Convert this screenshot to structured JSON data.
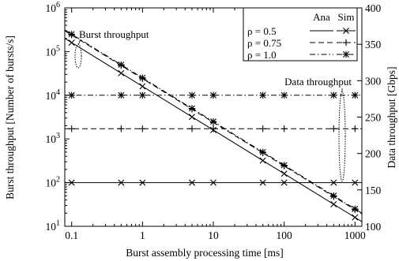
{
  "chart_data": {
    "type": "line",
    "xlabel": "Burst assembly processing time [ms]",
    "ylabel_left": "Burst throughput  [Number of bursts/s]",
    "ylabel_right": "Data throughput  [Gbps]",
    "x_scale": "log",
    "y_left_scale": "log",
    "xlim": [
      0.08,
      1250
    ],
    "ylim_left": [
      10,
      1000000
    ],
    "ylim_right": [
      100,
      400
    ],
    "x_ticks": [
      {
        "value": 0.1,
        "label": "0.1"
      },
      {
        "value": 1,
        "label": "1"
      },
      {
        "value": 10,
        "label": "10"
      },
      {
        "value": 100,
        "label": "100"
      },
      {
        "value": 1000,
        "label": "1000"
      }
    ],
    "y_left_ticks": [
      {
        "value": 10,
        "base": "10",
        "exp": "1"
      },
      {
        "value": 100,
        "base": "10",
        "exp": "2"
      },
      {
        "value": 1000,
        "base": "10",
        "exp": "3"
      },
      {
        "value": 10000,
        "base": "10",
        "exp": "4"
      },
      {
        "value": 100000,
        "base": "10",
        "exp": "5"
      },
      {
        "value": 1000000,
        "base": "10",
        "exp": "6"
      }
    ],
    "y_right_ticks": [
      100,
      150,
      200,
      250,
      300,
      350,
      400
    ],
    "legend": {
      "position": "top-right",
      "header_ana": "Ana",
      "header_sim": "Sim",
      "entries": [
        "ρ = 0.5",
        "ρ = 0.75",
        "ρ = 1.0"
      ]
    },
    "annotations": [
      {
        "text": "Burst throughput"
      },
      {
        "text": "Data throughput"
      }
    ],
    "sim_x": [
      0.1,
      0.5,
      1,
      5,
      10,
      50,
      100,
      500,
      1000
    ],
    "series": [
      {
        "name": "ρ = 0.5",
        "axis": "left",
        "kind": "burst",
        "dash": "none",
        "marker": "x",
        "ana_x": [
          0.08,
          1250
        ],
        "ana_y": [
          200000,
          12.8
        ],
        "sim_y": [
          160000,
          32000,
          16000,
          3200,
          1600,
          320,
          160,
          32,
          16
        ]
      },
      {
        "name": "ρ = 0.75",
        "axis": "left",
        "kind": "burst",
        "dash": "7,4",
        "marker": "plus",
        "ana_x": [
          0.08,
          1250
        ],
        "ana_y": [
          300000,
          19.2
        ],
        "sim_y": [
          240000,
          48000,
          24000,
          4800,
          2400,
          480,
          240,
          48,
          24
        ]
      },
      {
        "name": "ρ = 1.0",
        "axis": "left",
        "kind": "burst",
        "dash": "7,3,1.5,3",
        "marker": "star",
        "ana_x": [
          0.08,
          1250
        ],
        "ana_y": [
          312500,
          20
        ],
        "sim_y": [
          250000,
          50000,
          25000,
          5000,
          2500,
          500,
          250,
          50,
          25
        ]
      },
      {
        "name": "ρ = 0.5",
        "axis": "right",
        "kind": "data",
        "dash": "none",
        "marker": "x",
        "ana_x": [
          0.08,
          1250
        ],
        "ana_y": [
          160,
          160
        ],
        "sim_y": [
          160,
          160,
          160,
          160,
          160,
          160,
          160,
          160,
          160
        ]
      },
      {
        "name": "ρ = 0.75",
        "axis": "right",
        "kind": "data",
        "dash": "7,4",
        "marker": "plus",
        "ana_x": [
          0.08,
          1250
        ],
        "ana_y": [
          234,
          234
        ],
        "sim_y": [
          234,
          234,
          234,
          234,
          234,
          234,
          234,
          234,
          234
        ]
      },
      {
        "name": "ρ = 1.0",
        "axis": "right",
        "kind": "data",
        "dash": "7,3,1.5,3",
        "marker": "star",
        "ana_x": [
          0.08,
          1250
        ],
        "ana_y": [
          280,
          280
        ],
        "sim_y": [
          280,
          280,
          280,
          280,
          280,
          280,
          280,
          280,
          280
        ]
      }
    ]
  }
}
